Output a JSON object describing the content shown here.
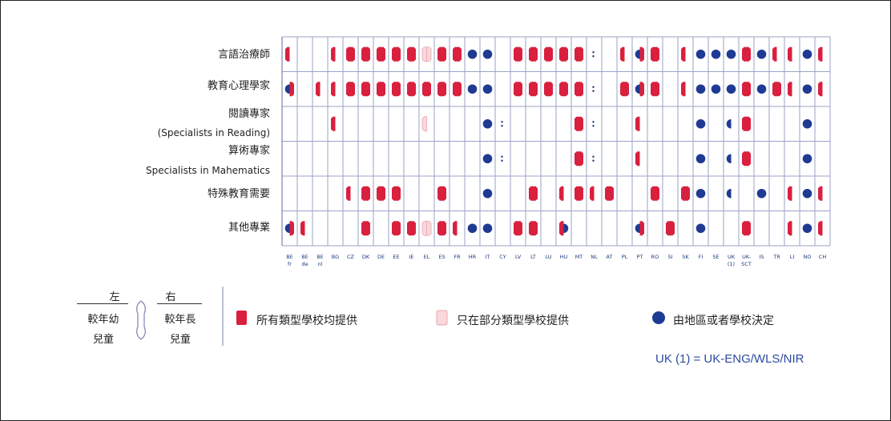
{
  "colors": {
    "red": "#d9203e",
    "pink": "#f9d9dd",
    "pink_edge": "#e6a5ad",
    "blue": "#1f3a93",
    "grid": "#9aa3c6"
  },
  "rows": [
    {
      "label": "言語治療師",
      "sub": ""
    },
    {
      "label": "教育心理學家",
      "sub": ""
    },
    {
      "label": "閱讀專家",
      "sub": "(Specialists in Reading)"
    },
    {
      "label": "算術專家",
      "sub": "Specialists in Mahematics"
    },
    {
      "label": "特殊教育需要",
      "sub": ""
    },
    {
      "label": "其他專業",
      "sub": ""
    }
  ],
  "countries": [
    {
      "code": "BE",
      "sub": "fr"
    },
    {
      "code": "BE",
      "sub": "de"
    },
    {
      "code": "BE",
      "sub": "nl"
    },
    {
      "code": "BG",
      "sub": ""
    },
    {
      "code": "CZ",
      "sub": ""
    },
    {
      "code": "DK",
      "sub": ""
    },
    {
      "code": "DE",
      "sub": ""
    },
    {
      "code": "EE",
      "sub": ""
    },
    {
      "code": "IE",
      "sub": ""
    },
    {
      "code": "EL",
      "sub": ""
    },
    {
      "code": "ES",
      "sub": ""
    },
    {
      "code": "FR",
      "sub": ""
    },
    {
      "code": "HR",
      "sub": ""
    },
    {
      "code": "IT",
      "sub": ""
    },
    {
      "code": "CY",
      "sub": ""
    },
    {
      "code": "LV",
      "sub": ""
    },
    {
      "code": "LT",
      "sub": ""
    },
    {
      "code": "LU",
      "sub": ""
    },
    {
      "code": "HU",
      "sub": ""
    },
    {
      "code": "MT",
      "sub": ""
    },
    {
      "code": "NL",
      "sub": ""
    },
    {
      "code": "AT",
      "sub": ""
    },
    {
      "code": "PL",
      "sub": ""
    },
    {
      "code": "PT",
      "sub": ""
    },
    {
      "code": "RO",
      "sub": ""
    },
    {
      "code": "SI",
      "sub": ""
    },
    {
      "code": "SK",
      "sub": ""
    },
    {
      "code": "FI",
      "sub": ""
    },
    {
      "code": "SE",
      "sub": ""
    },
    {
      "code": "UK",
      "sub": "(1)"
    },
    {
      "code": "UK-",
      "sub": "SCT"
    },
    {
      "code": "IS",
      "sub": ""
    },
    {
      "code": "TR",
      "sub": ""
    },
    {
      "code": "LI",
      "sub": ""
    },
    {
      "code": "NO",
      "sub": ""
    },
    {
      "code": "CH",
      "sub": ""
    }
  ],
  "legend": {
    "left_head": "左",
    "left_l1": "較年幼",
    "left_l2": "兒童",
    "right_head": "右",
    "right_l1": "較年長",
    "right_l2": "兒童",
    "items": [
      {
        "label": "所有類型學校均提供"
      },
      {
        "label": "只在部分類型學校提供"
      },
      {
        "label": "由地區或者學校決定"
      }
    ]
  },
  "note": "UK (1) = UK-ENG/WLS/NIR",
  "chart_data": {
    "type": "table",
    "encoding": "each cell lists [younger-children value, older-children value]; F = provided in all types of schools (red), P = provided only in some types of schools (pink), L = decided by local authority or school (blue), N = not provided, : = data not available",
    "rows": [
      "言語治療師",
      "教育心理學家",
      "閱讀專家 (Specialists in Reading)",
      "算術專家 Specialists in Mahematics",
      "特殊教育需要",
      "其他專業"
    ],
    "columns": [
      "BE fr",
      "BE de",
      "BE nl",
      "BG",
      "CZ",
      "DK",
      "DE",
      "EE",
      "IE",
      "EL",
      "ES",
      "FR",
      "HR",
      "IT",
      "CY",
      "LV",
      "LT",
      "LU",
      "HU",
      "MT",
      "NL",
      "AT",
      "PL",
      "PT",
      "RO",
      "SI",
      "SK",
      "FI",
      "SE",
      "UK (1)",
      "UK-SCT",
      "IS",
      "TR",
      "LI",
      "NO",
      "CH"
    ],
    "cells": [
      [
        [
          "F",
          "N"
        ],
        [
          "N",
          "N"
        ],
        [
          "N",
          "N"
        ],
        [
          "F",
          "N"
        ],
        [
          "F",
          "F"
        ],
        [
          "F",
          "F"
        ],
        [
          "F",
          "F"
        ],
        [
          "F",
          "F"
        ],
        [
          "F",
          "F"
        ],
        [
          "P",
          "P"
        ],
        [
          "F",
          "F"
        ],
        [
          "F",
          "F"
        ],
        [
          "L",
          "L"
        ],
        [
          "L",
          "L"
        ],
        [
          "N",
          "N"
        ],
        [
          "F",
          "F"
        ],
        [
          "F",
          "F"
        ],
        [
          "F",
          "F"
        ],
        [
          "F",
          "F"
        ],
        [
          "F",
          "F"
        ],
        [
          ":",
          ":"
        ],
        [
          "N",
          "N"
        ],
        [
          "F",
          "N"
        ],
        [
          "L",
          "F"
        ],
        [
          "F",
          "F"
        ],
        [
          "N",
          "N"
        ],
        [
          "F",
          "N"
        ],
        [
          "L",
          "L"
        ],
        [
          "L",
          "L"
        ],
        [
          "L",
          "L"
        ],
        [
          "F",
          "F"
        ],
        [
          "L",
          "L"
        ],
        [
          "F",
          "N"
        ],
        [
          "F",
          "N"
        ],
        [
          "L",
          "L"
        ],
        [
          "F",
          "N"
        ]
      ],
      [
        [
          "L",
          "F"
        ],
        [
          "N",
          "N"
        ],
        [
          "F",
          "N"
        ],
        [
          "F",
          "N"
        ],
        [
          "F",
          "F"
        ],
        [
          "F",
          "F"
        ],
        [
          "F",
          "F"
        ],
        [
          "F",
          "F"
        ],
        [
          "F",
          "F"
        ],
        [
          "F",
          "F"
        ],
        [
          "F",
          "F"
        ],
        [
          "F",
          "F"
        ],
        [
          "L",
          "L"
        ],
        [
          "L",
          "L"
        ],
        [
          "N",
          "N"
        ],
        [
          "F",
          "F"
        ],
        [
          "F",
          "F"
        ],
        [
          "F",
          "F"
        ],
        [
          "F",
          "F"
        ],
        [
          "F",
          "F"
        ],
        [
          ":",
          ":"
        ],
        [
          "N",
          "N"
        ],
        [
          "F",
          "F"
        ],
        [
          "L",
          "F"
        ],
        [
          "F",
          "F"
        ],
        [
          "N",
          "N"
        ],
        [
          "F",
          "N"
        ],
        [
          "L",
          "L"
        ],
        [
          "L",
          "L"
        ],
        [
          "L",
          "L"
        ],
        [
          "F",
          "F"
        ],
        [
          "L",
          "L"
        ],
        [
          "F",
          "F"
        ],
        [
          "F",
          "N"
        ],
        [
          "L",
          "L"
        ],
        [
          "F",
          "N"
        ]
      ],
      [
        [
          "N",
          "N"
        ],
        [
          "N",
          "N"
        ],
        [
          "N",
          "N"
        ],
        [
          "F",
          "N"
        ],
        [
          "N",
          "N"
        ],
        [
          "N",
          "N"
        ],
        [
          "N",
          "N"
        ],
        [
          "N",
          "N"
        ],
        [
          "N",
          "N"
        ],
        [
          "P",
          "N"
        ],
        [
          "N",
          "N"
        ],
        [
          "N",
          "N"
        ],
        [
          "N",
          "N"
        ],
        [
          "L",
          "L"
        ],
        [
          ":",
          ":"
        ],
        [
          "N",
          "N"
        ],
        [
          "N",
          "N"
        ],
        [
          "N",
          "N"
        ],
        [
          "N",
          "N"
        ],
        [
          "F",
          "F"
        ],
        [
          ":",
          ":"
        ],
        [
          "N",
          "N"
        ],
        [
          "N",
          "N"
        ],
        [
          "F",
          "N"
        ],
        [
          "N",
          "N"
        ],
        [
          "N",
          "N"
        ],
        [
          "N",
          "N"
        ],
        [
          "L",
          "L"
        ],
        [
          "N",
          "N"
        ],
        [
          "L",
          "N"
        ],
        [
          "F",
          "F"
        ],
        [
          "N",
          "N"
        ],
        [
          "N",
          "N"
        ],
        [
          "N",
          "N"
        ],
        [
          "L",
          "L"
        ],
        [
          "N",
          "N"
        ]
      ],
      [
        [
          "N",
          "N"
        ],
        [
          "N",
          "N"
        ],
        [
          "N",
          "N"
        ],
        [
          "N",
          "N"
        ],
        [
          "N",
          "N"
        ],
        [
          "N",
          "N"
        ],
        [
          "N",
          "N"
        ],
        [
          "N",
          "N"
        ],
        [
          "N",
          "N"
        ],
        [
          "N",
          "N"
        ],
        [
          "N",
          "N"
        ],
        [
          "N",
          "N"
        ],
        [
          "N",
          "N"
        ],
        [
          "L",
          "L"
        ],
        [
          ":",
          ":"
        ],
        [
          "N",
          "N"
        ],
        [
          "N",
          "N"
        ],
        [
          "N",
          "N"
        ],
        [
          "N",
          "N"
        ],
        [
          "F",
          "F"
        ],
        [
          ":",
          ":"
        ],
        [
          "N",
          "N"
        ],
        [
          "N",
          "N"
        ],
        [
          "F",
          "N"
        ],
        [
          "N",
          "N"
        ],
        [
          "N",
          "N"
        ],
        [
          "N",
          "N"
        ],
        [
          "L",
          "L"
        ],
        [
          "N",
          "N"
        ],
        [
          "L",
          "N"
        ],
        [
          "F",
          "F"
        ],
        [
          "N",
          "N"
        ],
        [
          "N",
          "N"
        ],
        [
          "N",
          "N"
        ],
        [
          "L",
          "L"
        ],
        [
          "N",
          "N"
        ]
      ],
      [
        [
          "N",
          "N"
        ],
        [
          "N",
          "N"
        ],
        [
          "N",
          "N"
        ],
        [
          "N",
          "N"
        ],
        [
          "F",
          "N"
        ],
        [
          "F",
          "F"
        ],
        [
          "F",
          "F"
        ],
        [
          "F",
          "F"
        ],
        [
          "N",
          "N"
        ],
        [
          "N",
          "N"
        ],
        [
          "F",
          "F"
        ],
        [
          "N",
          "N"
        ],
        [
          "N",
          "N"
        ],
        [
          "L",
          "L"
        ],
        [
          "N",
          "N"
        ],
        [
          "N",
          "N"
        ],
        [
          "F",
          "F"
        ],
        [
          "N",
          "N"
        ],
        [
          "F",
          "N"
        ],
        [
          "F",
          "F"
        ],
        [
          "F",
          "N"
        ],
        [
          "F",
          "F"
        ],
        [
          "N",
          "N"
        ],
        [
          "N",
          "N"
        ],
        [
          "F",
          "F"
        ],
        [
          "N",
          "N"
        ],
        [
          "F",
          "F"
        ],
        [
          "L",
          "L"
        ],
        [
          "N",
          "N"
        ],
        [
          "L",
          "N"
        ],
        [
          "N",
          "N"
        ],
        [
          "L",
          "L"
        ],
        [
          "N",
          "N"
        ],
        [
          "F",
          "N"
        ],
        [
          "L",
          "L"
        ],
        [
          "F",
          "N"
        ]
      ],
      [
        [
          "L",
          "F"
        ],
        [
          "F",
          "N"
        ],
        [
          "N",
          "N"
        ],
        [
          "N",
          "N"
        ],
        [
          "N",
          "N"
        ],
        [
          "F",
          "F"
        ],
        [
          "N",
          "N"
        ],
        [
          "F",
          "F"
        ],
        [
          "F",
          "F"
        ],
        [
          "P",
          "P"
        ],
        [
          "F",
          "F"
        ],
        [
          "F",
          "N"
        ],
        [
          "L",
          "L"
        ],
        [
          "L",
          "L"
        ],
        [
          "N",
          "N"
        ],
        [
          "F",
          "F"
        ],
        [
          "F",
          "F"
        ],
        [
          "N",
          "N"
        ],
        [
          "F",
          "L"
        ],
        [
          "N",
          "N"
        ],
        [
          "N",
          "N"
        ],
        [
          "N",
          "N"
        ],
        [
          "N",
          "N"
        ],
        [
          "L",
          "F"
        ],
        [
          "N",
          "N"
        ],
        [
          "F",
          "F"
        ],
        [
          "N",
          "N"
        ],
        [
          "L",
          "L"
        ],
        [
          "N",
          "N"
        ],
        [
          "N",
          "N"
        ],
        [
          "F",
          "F"
        ],
        [
          "N",
          "N"
        ],
        [
          "N",
          "N"
        ],
        [
          "F",
          "N"
        ],
        [
          "L",
          "L"
        ],
        [
          "F",
          "N"
        ]
      ]
    ]
  }
}
